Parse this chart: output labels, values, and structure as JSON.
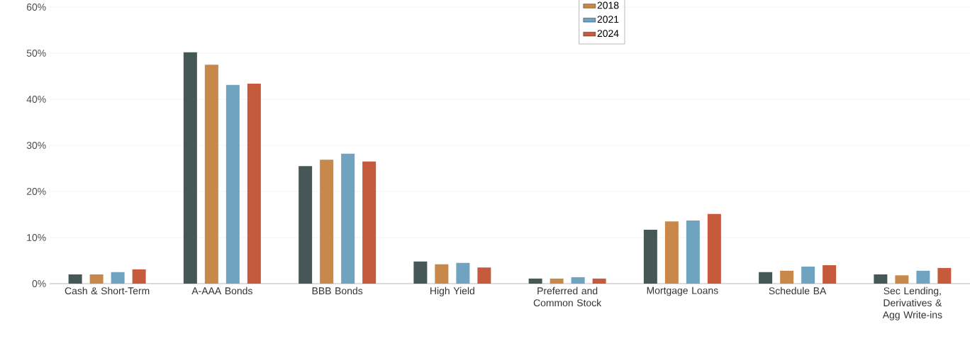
{
  "chart_data": {
    "type": "bar",
    "categories": [
      "Cash & Short-Term",
      "A-AAA Bonds",
      "BBB Bonds",
      "High Yield",
      "Preferred and Common Stock",
      "Mortgage Loans",
      "Schedule BA",
      "Sec Lending, Derivatives & Agg Write-ins"
    ],
    "series": [
      {
        "color": "#465856",
        "values": [
          2.0,
          50.2,
          25.5,
          4.8,
          1.1,
          11.7,
          2.5,
          2.0
        ]
      },
      {
        "name": "2018",
        "color": "#c8884a",
        "values": [
          2.0,
          47.5,
          26.9,
          4.2,
          1.1,
          13.5,
          2.8,
          1.8
        ]
      },
      {
        "name": "2021",
        "color": "#6fa3c0",
        "values": [
          2.5,
          43.1,
          28.2,
          4.5,
          1.4,
          13.7,
          3.7,
          2.8
        ]
      },
      {
        "name": "2024",
        "color": "#c55a3c",
        "values": [
          3.1,
          43.4,
          26.5,
          3.5,
          1.1,
          15.1,
          4.0,
          3.4
        ]
      }
    ],
    "ylim": [
      0,
      60
    ],
    "yticks": [
      {
        "value": 0,
        "label": "0%"
      },
      {
        "value": 10,
        "label": "10%"
      },
      {
        "value": 20,
        "label": "20%"
      },
      {
        "value": 30,
        "label": "30%"
      },
      {
        "value": 40,
        "label": "40%"
      },
      {
        "value": 50,
        "label": "50%"
      },
      {
        "value": 60,
        "label": "60%"
      }
    ],
    "grid": "y",
    "legend": "top"
  }
}
